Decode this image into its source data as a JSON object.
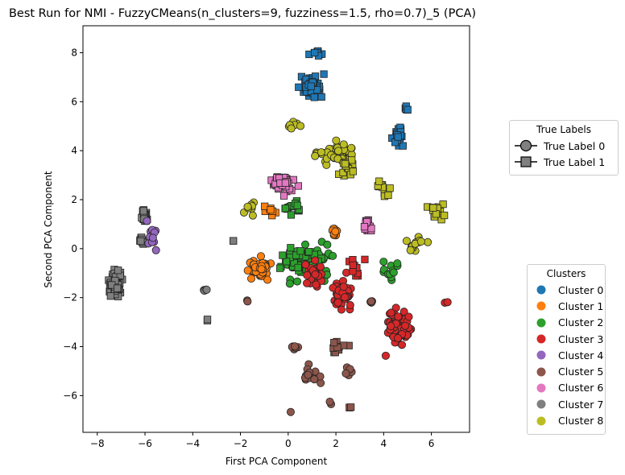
{
  "chart_data": {
    "type": "scatter",
    "title": "Best Run for NMI - FuzzyCMeans(n_clusters=9, fuzziness=1.5, rho=0.7)_5 (PCA)",
    "xlabel": "First PCA Component",
    "ylabel": "Second PCA Component",
    "xlim": [
      -8.6,
      7.6
    ],
    "ylim": [
      -7.5,
      9.1
    ],
    "xticks": [
      -8,
      -6,
      -4,
      -2,
      0,
      2,
      4,
      6
    ],
    "yticks": [
      -6,
      -4,
      -2,
      0,
      2,
      4,
      6,
      8
    ],
    "xtick_labels": [
      "−8",
      "−6",
      "−4",
      "−2",
      "0",
      "2",
      "4",
      "6"
    ],
    "ytick_labels": [
      "−6",
      "−4",
      "−2",
      "0",
      "2",
      "4",
      "6",
      "8"
    ],
    "grid": false,
    "marker_legend": {
      "title": "True Labels",
      "placement": "right, upper",
      "entries": [
        {
          "label": "True Label 0",
          "marker": "circle"
        },
        {
          "label": "True Label 1",
          "marker": "square"
        }
      ]
    },
    "color_legend": {
      "title": "Clusters",
      "placement": "right, lower",
      "entries": [
        {
          "label": "Cluster 0",
          "color": "#1f77b4"
        },
        {
          "label": "Cluster 1",
          "color": "#ff7f0e"
        },
        {
          "label": "Cluster 2",
          "color": "#2ca02c"
        },
        {
          "label": "Cluster 3",
          "color": "#d62728"
        },
        {
          "label": "Cluster 4",
          "color": "#9467bd"
        },
        {
          "label": "Cluster 5",
          "color": "#8c564b"
        },
        {
          "label": "Cluster 6",
          "color": "#e377c2"
        },
        {
          "label": "Cluster 7",
          "color": "#7f7f7f"
        },
        {
          "label": "Cluster 8",
          "color": "#bcbd22"
        }
      ]
    },
    "groups": [
      {
        "cluster": 7,
        "true_label": 1,
        "center": [
          -7.2,
          -1.5
        ],
        "spread": [
          0.35,
          0.75
        ],
        "count": 95
      },
      {
        "cluster": 7,
        "true_label": 1,
        "center": [
          -6.0,
          1.3
        ],
        "spread": [
          0.22,
          0.35
        ],
        "count": 22
      },
      {
        "cluster": 7,
        "true_label": 1,
        "center": [
          -6.1,
          0.3
        ],
        "spread": [
          0.25,
          0.2
        ],
        "count": 14
      },
      {
        "cluster": 7,
        "true_label": 0,
        "center": [
          -3.5,
          -1.7
        ],
        "spread": [
          0.12,
          0.1
        ],
        "count": 4
      },
      {
        "cluster": 7,
        "true_label": 1,
        "center": [
          -3.4,
          -2.9
        ],
        "spread": [
          0.12,
          0.08
        ],
        "count": 2
      },
      {
        "cluster": 7,
        "true_label": 1,
        "center": [
          -2.3,
          0.3
        ],
        "spread": [
          0.1,
          0.08
        ],
        "count": 2
      },
      {
        "cluster": 4,
        "true_label": 0,
        "center": [
          -5.7,
          0.8
        ],
        "spread": [
          0.35,
          1.0
        ],
        "count": 12
      },
      {
        "cluster": 0,
        "true_label": 1,
        "center": [
          1.0,
          6.6
        ],
        "spread": [
          0.6,
          0.6
        ],
        "count": 65
      },
      {
        "cluster": 0,
        "true_label": 1,
        "center": [
          1.3,
          8.0
        ],
        "spread": [
          0.4,
          0.15
        ],
        "count": 10
      },
      {
        "cluster": 0,
        "true_label": 1,
        "center": [
          4.6,
          4.6
        ],
        "spread": [
          0.35,
          0.6
        ],
        "count": 28
      },
      {
        "cluster": 0,
        "true_label": 1,
        "center": [
          5.0,
          5.7
        ],
        "spread": [
          0.25,
          0.15
        ],
        "count": 6
      },
      {
        "cluster": 8,
        "true_label": 0,
        "center": [
          2.0,
          3.9
        ],
        "spread": [
          1.1,
          0.6
        ],
        "count": 50
      },
      {
        "cluster": 8,
        "true_label": 1,
        "center": [
          2.5,
          3.3
        ],
        "spread": [
          0.5,
          0.5
        ],
        "count": 22
      },
      {
        "cluster": 8,
        "true_label": 1,
        "center": [
          4.0,
          2.3
        ],
        "spread": [
          0.5,
          0.6
        ],
        "count": 12
      },
      {
        "cluster": 8,
        "true_label": 1,
        "center": [
          6.2,
          1.6
        ],
        "spread": [
          0.5,
          0.5
        ],
        "count": 18
      },
      {
        "cluster": 8,
        "true_label": 0,
        "center": [
          5.4,
          0.1
        ],
        "spread": [
          0.6,
          0.4
        ],
        "count": 14
      },
      {
        "cluster": 8,
        "true_label": 0,
        "center": [
          -1.6,
          1.6
        ],
        "spread": [
          0.4,
          0.5
        ],
        "count": 8
      },
      {
        "cluster": 8,
        "true_label": 0,
        "center": [
          0.3,
          5.0
        ],
        "spread": [
          0.5,
          0.3
        ],
        "count": 8
      },
      {
        "cluster": 6,
        "true_label": 1,
        "center": [
          -0.2,
          2.7
        ],
        "spread": [
          0.6,
          0.5
        ],
        "count": 45
      },
      {
        "cluster": 6,
        "true_label": 1,
        "center": [
          3.3,
          0.9
        ],
        "spread": [
          0.3,
          0.5
        ],
        "count": 16
      },
      {
        "cluster": 1,
        "true_label": 0,
        "center": [
          -1.2,
          -0.8
        ],
        "spread": [
          0.6,
          0.5
        ],
        "count": 40
      },
      {
        "cluster": 1,
        "true_label": 1,
        "center": [
          -0.8,
          1.6
        ],
        "spread": [
          0.4,
          0.3
        ],
        "count": 8
      },
      {
        "cluster": 1,
        "true_label": 0,
        "center": [
          1.9,
          0.8
        ],
        "spread": [
          0.4,
          0.4
        ],
        "count": 8
      },
      {
        "cluster": 2,
        "true_label": 0,
        "center": [
          1.0,
          -0.6
        ],
        "spread": [
          1.4,
          1.0
        ],
        "count": 45
      },
      {
        "cluster": 2,
        "true_label": 1,
        "center": [
          0.5,
          -0.5
        ],
        "spread": [
          1.2,
          0.9
        ],
        "count": 30
      },
      {
        "cluster": 2,
        "true_label": 1,
        "center": [
          0.3,
          1.7
        ],
        "spread": [
          0.6,
          0.4
        ],
        "count": 15
      },
      {
        "cluster": 2,
        "true_label": 0,
        "center": [
          4.2,
          -0.9
        ],
        "spread": [
          0.6,
          0.6
        ],
        "count": 12
      },
      {
        "cluster": 3,
        "true_label": 0,
        "center": [
          4.6,
          -3.3
        ],
        "spread": [
          0.7,
          0.9
        ],
        "count": 90
      },
      {
        "cluster": 3,
        "true_label": 0,
        "center": [
          2.3,
          -1.9
        ],
        "spread": [
          0.6,
          0.9
        ],
        "count": 45
      },
      {
        "cluster": 3,
        "true_label": 0,
        "center": [
          1.1,
          -1.1
        ],
        "spread": [
          0.4,
          0.7
        ],
        "count": 30
      },
      {
        "cluster": 3,
        "true_label": 1,
        "center": [
          2.8,
          -0.7
        ],
        "spread": [
          0.6,
          0.7
        ],
        "count": 12
      },
      {
        "cluster": 3,
        "true_label": 0,
        "center": [
          6.6,
          -2.2
        ],
        "spread": [
          0.08,
          0.05
        ],
        "count": 2
      },
      {
        "cluster": 5,
        "true_label": 0,
        "center": [
          0.9,
          -5.2
        ],
        "spread": [
          0.7,
          0.6
        ],
        "count": 16
      },
      {
        "cluster": 5,
        "true_label": 1,
        "center": [
          2.1,
          -4.0
        ],
        "spread": [
          0.6,
          0.3
        ],
        "count": 12
      },
      {
        "cluster": 5,
        "true_label": 0,
        "center": [
          0.3,
          -4.0
        ],
        "spread": [
          0.2,
          0.15
        ],
        "count": 6
      },
      {
        "cluster": 5,
        "true_label": 0,
        "center": [
          2.5,
          -5.0
        ],
        "spread": [
          0.3,
          0.3
        ],
        "count": 5
      },
      {
        "cluster": 5,
        "true_label": 1,
        "center": [
          2.6,
          -6.5
        ],
        "spread": [
          0.15,
          0.08
        ],
        "count": 3
      },
      {
        "cluster": 5,
        "true_label": 0,
        "center": [
          0.1,
          -6.7
        ],
        "spread": [
          0.05,
          0.05
        ],
        "count": 1
      },
      {
        "cluster": 5,
        "true_label": 0,
        "center": [
          1.8,
          -6.3
        ],
        "spread": [
          0.1,
          0.1
        ],
        "count": 2
      },
      {
        "cluster": 5,
        "true_label": 0,
        "center": [
          -1.7,
          -2.1
        ],
        "spread": [
          0.1,
          0.1
        ],
        "count": 2
      },
      {
        "cluster": 5,
        "true_label": 0,
        "center": [
          3.4,
          -2.2
        ],
        "spread": [
          0.3,
          0.1
        ],
        "count": 4
      }
    ]
  }
}
